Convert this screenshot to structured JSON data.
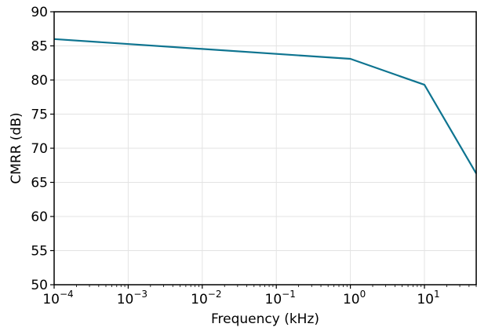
{
  "chart_data": {
    "type": "line",
    "xlabel": "Frequency (kHz)",
    "ylabel": "CMRR (dB)",
    "xscale": "log",
    "xlim": [
      0.0001,
      50
    ],
    "ylim": [
      50,
      90
    ],
    "grid": true,
    "x_ticks": [
      {
        "base": "10",
        "exp": "−4",
        "value": 0.0001
      },
      {
        "base": "10",
        "exp": "−3",
        "value": 0.001
      },
      {
        "base": "10",
        "exp": "−2",
        "value": 0.01
      },
      {
        "base": "10",
        "exp": "−1",
        "value": 0.1
      },
      {
        "base": "10",
        "exp": "0",
        "value": 1
      },
      {
        "base": "10",
        "exp": "1",
        "value": 10
      }
    ],
    "y_ticks": [
      50,
      55,
      60,
      65,
      70,
      75,
      80,
      85,
      90
    ],
    "series": [
      {
        "color": "#0e7490",
        "x": [
          0.0001,
          1,
          10,
          50
        ],
        "y": [
          86,
          83.1,
          79.3,
          66.3
        ]
      }
    ]
  }
}
